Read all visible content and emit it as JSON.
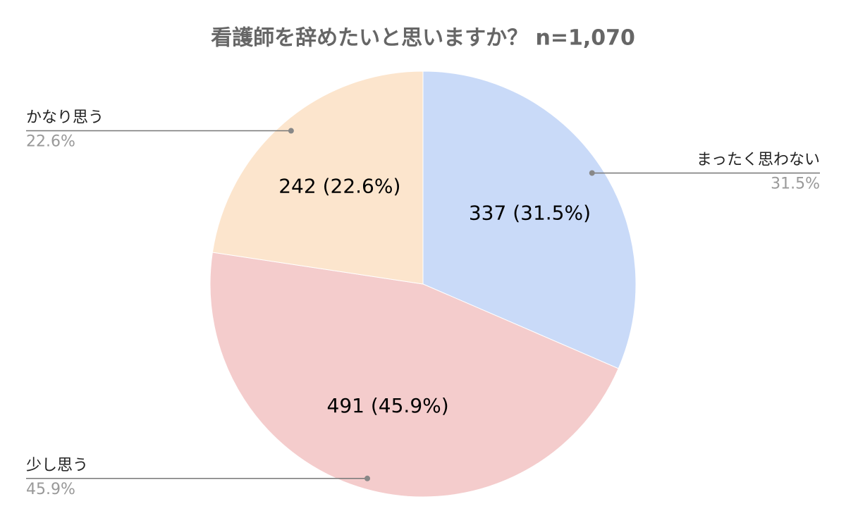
{
  "chart_data": {
    "type": "pie",
    "title": "看護師を辞めたいと思いますか？ n=1,070",
    "categories": [
      "まったく思わない",
      "少し思う",
      "かなり思う"
    ],
    "values": [
      337,
      491,
      242
    ],
    "value_labels": [
      "337 (31.5%)",
      "491 (45.9%)",
      "242 (22.6%)"
    ],
    "percent_labels": [
      "31.5%",
      "45.9%",
      "22.6%"
    ],
    "colors": [
      "#c9daf8",
      "#f4cccc",
      "#fce5cd"
    ]
  }
}
